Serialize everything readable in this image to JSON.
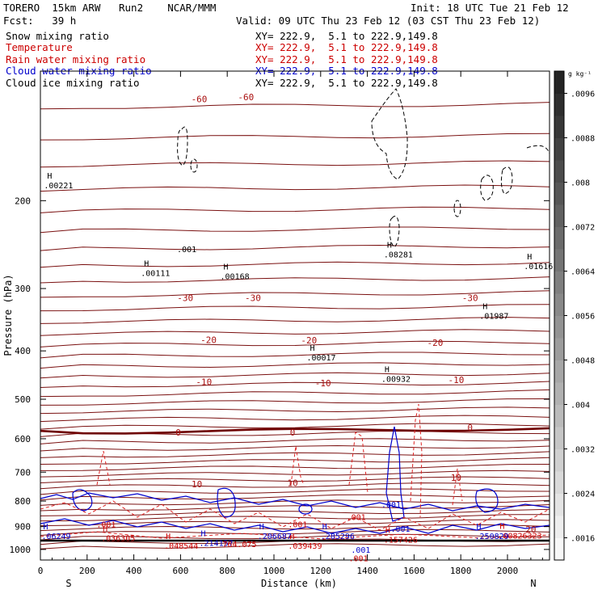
{
  "header": {
    "left1": "TORERO  15km ARW   Run2    NCAR/MMM",
    "left2": "Fcst:   39 h",
    "init": "Init: 18 UTC Tue 21 Feb 12",
    "valid": "Valid: 09 UTC Thu 23 Feb 12 (03 CST Thu 23 Feb 12)"
  },
  "legend": [
    {
      "label": "Snow mixing ratio",
      "xy": "XY= 222.9,  5.1 to 222.9,149.8",
      "color": "#000000",
      "xy_color": "#000000"
    },
    {
      "label": "Temperature",
      "xy": "XY= 222.9,  5.1 to 222.9,149.8",
      "color": "#cc0000",
      "xy_color": "#cc0000"
    },
    {
      "label": "Rain water mixing ratio",
      "xy": "XY= 222.9,  5.1 to 222.9,149.8",
      "color": "#cc0000",
      "xy_color": "#cc0000"
    },
    {
      "label": "Cloud water mixing ratio",
      "xy": "XY= 222.9,  5.1 to 222.9,149.8",
      "color": "#0000cc",
      "xy_color": "#0000cc"
    },
    {
      "label": "Cloud ice mixing ratio",
      "xy": "XY= 222.9,  5.1 to 222.9,149.8",
      "color": "#000000",
      "xy_color": "#000000"
    }
  ],
  "chart_data": {
    "type": "cross-section contour",
    "xlabel": "Distance (km)",
    "ylabel": "Pressure (hPa)",
    "x_ticks": [
      0,
      200,
      400,
      600,
      800,
      1000,
      1200,
      1400,
      1600,
      1800,
      2000
    ],
    "y_ticks": [
      200,
      300,
      400,
      500,
      600,
      700,
      800,
      900,
      1000
    ],
    "xlim": [
      0,
      2180
    ],
    "ylim": [
      1050,
      110
    ],
    "y_scale": "log",
    "x_end_labels": {
      "left": "S",
      "right": "N"
    },
    "colorbar": {
      "unit": "g kg⁻¹",
      "ticks": [
        ".0016",
        ".0024",
        ".0032",
        ".004",
        ".0048",
        ".0056",
        ".0064",
        ".0072",
        ".008",
        ".0088",
        ".0096"
      ],
      "tick_values": [
        0.0016,
        0.0024,
        0.0032,
        0.004,
        0.0048,
        0.0056,
        0.0064,
        0.0072,
        0.008,
        0.0088,
        0.0096
      ],
      "range": [
        0.0012,
        0.01
      ],
      "bands": 22
    },
    "temperature_labels": [
      {
        "text": "-60",
        "x": 680,
        "p": 125
      },
      {
        "text": "-60",
        "x": 880,
        "p": 124
      },
      {
        "text": "-30",
        "x": 620,
        "p": 313
      },
      {
        "text": "-30",
        "x": 910,
        "p": 313
      },
      {
        "text": "-30",
        "x": 1840,
        "p": 313
      },
      {
        "text": "-20",
        "x": 720,
        "p": 380
      },
      {
        "text": "-20",
        "x": 1150,
        "p": 381
      },
      {
        "text": "-20",
        "x": 1690,
        "p": 385
      },
      {
        "text": "-10",
        "x": 700,
        "p": 461
      },
      {
        "text": "-10",
        "x": 1210,
        "p": 464
      },
      {
        "text": "-10",
        "x": 1780,
        "p": 457
      },
      {
        "text": "0",
        "x": 590,
        "p": 583
      },
      {
        "text": "0",
        "x": 1080,
        "p": 583
      },
      {
        "text": "0",
        "x": 1840,
        "p": 570
      },
      {
        "text": "10",
        "x": 670,
        "p": 740
      },
      {
        "text": "10",
        "x": 1080,
        "p": 735
      },
      {
        "text": "10",
        "x": 1780,
        "p": 718
      },
      {
        "text": "20",
        "x": 2100,
        "p": 912
      }
    ],
    "snow_maxima": [
      {
        "text": ".00221",
        "x": 15,
        "p": 186
      },
      {
        "text": ".00111",
        "x": 430,
        "p": 279
      },
      {
        "text": ".00168",
        "x": 770,
        "p": 283
      },
      {
        "text": ".00017",
        "x": 1140,
        "p": 412
      },
      {
        "text": ".00932",
        "x": 1460,
        "p": 455
      },
      {
        "text": ".08281",
        "x": 1470,
        "p": 256
      },
      {
        "text": ".01987",
        "x": 1880,
        "p": 340
      },
      {
        "text": ".01616",
        "x": 2070,
        "p": 270
      }
    ],
    "rain_maxima": [
      {
        "text": ".036305",
        "x": 260,
        "p": 952
      },
      {
        "text": ".048544",
        "x": 530,
        "p": 985
      },
      {
        "text": ".039439",
        "x": 1060,
        "p": 985
      },
      {
        "text": ".157426",
        "x": 1470,
        "p": 958
      },
      {
        "text": ".00826323",
        "x": 1960,
        "p": 940
      }
    ],
    "cloud_water_maxima": [
      {
        "text": ".06249",
        "x": 5,
        "p": 942
      },
      {
        "text": ".214157",
        "x": 680,
        "p": 972
      },
      {
        "text": ".206687",
        "x": 930,
        "p": 942
      },
      {
        "text": ".285296",
        "x": 1200,
        "p": 942
      },
      {
        "text": ".250829",
        "x": 1860,
        "p": 942
      }
    ],
    "contour_labels": [
      {
        "text": ".001",
        "x": 585,
        "p": 250,
        "color": "#000000"
      },
      {
        "text": ".001",
        "x": 240,
        "p": 890,
        "color": "#cc0000"
      },
      {
        "text": ".001",
        "x": 1060,
        "p": 890,
        "color": "#cc0000"
      },
      {
        "text": ".001",
        "x": 1310,
        "p": 860,
        "color": "#cc0000"
      },
      {
        "text": ".001",
        "x": 1460,
        "p": 812,
        "color": "#0000cc"
      },
      {
        "text": ".001",
        "x": 1500,
        "p": 908,
        "color": "#0000cc"
      },
      {
        "text": ".001",
        "x": 1330,
        "p": 1000,
        "color": "#0000cc"
      },
      {
        "text": ".001",
        "x": 1320,
        "p": 1040,
        "color": "#cc0000"
      },
      {
        "text": "764.075",
        "x": 780,
        "p": 975,
        "color": "#cc0000"
      }
    ]
  }
}
